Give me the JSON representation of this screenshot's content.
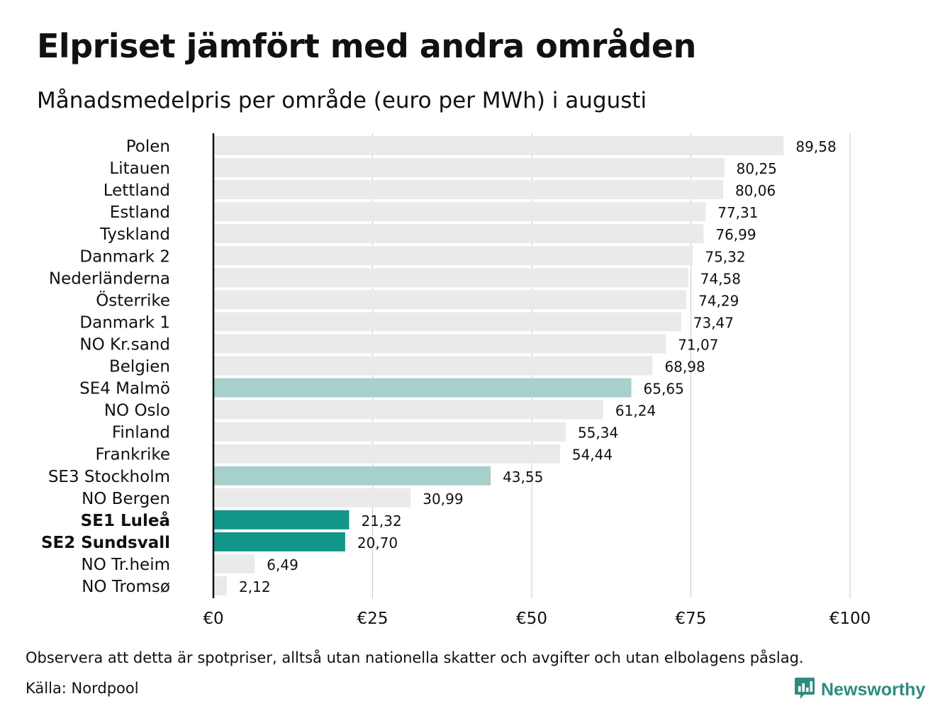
{
  "title": "Elpriset jämfört med andra områden",
  "subtitle": "Månadsmedelpris per område (euro per MWh) i augusti",
  "footnote": "Observera att detta är spotpriser, alltså utan nationella skatter och avgifter och utan elbolagens påslag.",
  "source": "Källa: Nordpool",
  "brand": {
    "name": "Newsworthy",
    "icon": "newsworthy-logo-icon"
  },
  "colors": {
    "default_bar": "#eaeaea",
    "highlight_light": "#a6d0c9",
    "highlight_strong": "#13968a",
    "axis": "#111111",
    "grid": "#c8c8d0"
  },
  "chart_data": {
    "type": "bar",
    "orientation": "horizontal",
    "categories": [
      "Polen",
      "Litauen",
      "Lettland",
      "Estland",
      "Tyskland",
      "Danmark 2",
      "Nederländerna",
      "Österrike",
      "Danmark 1",
      "NO Kr.sand",
      "Belgien",
      "SE4 Malmö",
      "NO Oslo",
      "Finland",
      "Frankrike",
      "SE3 Stockholm",
      "NO Bergen",
      "SE1 Luleå",
      "SE2 Sundsvall",
      "NO Tr.heim",
      "NO Tromsø"
    ],
    "values": [
      89.58,
      80.25,
      80.06,
      77.31,
      76.99,
      75.32,
      74.58,
      74.29,
      73.47,
      71.07,
      68.98,
      65.65,
      61.24,
      55.34,
      54.44,
      43.55,
      30.99,
      21.32,
      20.7,
      6.49,
      2.12
    ],
    "value_labels": [
      "89,58",
      "80,25",
      "80,06",
      "77,31",
      "76,99",
      "75,32",
      "74,58",
      "74,29",
      "73,47",
      "71,07",
      "68,98",
      "65,65",
      "61,24",
      "55,34",
      "54,44",
      "43,55",
      "30,99",
      "21,32",
      "20,70",
      "6,49",
      "2,12"
    ],
    "highlight": [
      "none",
      "none",
      "none",
      "none",
      "none",
      "none",
      "none",
      "none",
      "none",
      "none",
      "none",
      "light",
      "none",
      "none",
      "none",
      "light",
      "none",
      "strong",
      "strong",
      "none",
      "none"
    ],
    "x_ticks": [
      0,
      25,
      50,
      75,
      100
    ],
    "x_tick_labels": [
      "€0",
      "€25",
      "€50",
      "€75",
      "€100"
    ],
    "xlim": [
      0,
      100
    ],
    "xlabel": "",
    "ylabel": "",
    "grid": true,
    "legend": "none"
  }
}
